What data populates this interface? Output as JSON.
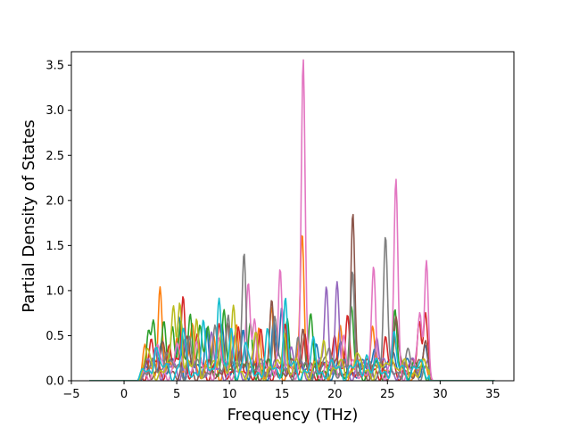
{
  "chart_data": {
    "type": "line",
    "title": "",
    "xlabel": "Frequency (THz)",
    "ylabel": "Partial Density of States",
    "xlim": [
      -5,
      37
    ],
    "ylim": [
      0,
      3.65
    ],
    "xticks": [
      -5,
      0,
      5,
      10,
      15,
      20,
      25,
      30,
      35
    ],
    "yticks": [
      0.0,
      0.5,
      1.0,
      1.5,
      2.0,
      2.5,
      3.0,
      3.5
    ],
    "xtick_labels": [
      "−5",
      "0",
      "5",
      "10",
      "15",
      "20",
      "25",
      "30",
      "35"
    ],
    "ytick_labels": [
      "0.0",
      "0.5",
      "1.0",
      "1.5",
      "2.0",
      "2.5",
      "3.0",
      "3.5"
    ],
    "grid": false,
    "legend": "none",
    "series": [
      {
        "color": "#1f77b4",
        "peaks": [
          [
            3.5,
            0.35
          ],
          [
            5.2,
            0.62
          ],
          [
            7.8,
            0.5
          ],
          [
            9.3,
            0.6
          ],
          [
            11.3,
            0.45
          ],
          [
            14.2,
            0.55
          ],
          [
            15.0,
            0.62
          ],
          [
            18.2,
            0.25
          ],
          [
            20.5,
            0.3
          ],
          [
            23.8,
            0.35
          ],
          [
            25.6,
            0.3
          ],
          [
            28.5,
            0.2
          ]
        ]
      },
      {
        "color": "#ff7f0e",
        "peaks": [
          [
            2.0,
            0.2
          ],
          [
            3.4,
            0.91
          ],
          [
            5.0,
            0.45
          ],
          [
            6.5,
            0.55
          ],
          [
            8.5,
            0.35
          ],
          [
            10.7,
            0.55
          ],
          [
            12.8,
            0.5
          ],
          [
            14.0,
            0.6
          ],
          [
            16.9,
            1.62
          ],
          [
            20.5,
            0.45
          ],
          [
            23.6,
            0.55
          ],
          [
            25.6,
            0.4
          ]
        ]
      },
      {
        "color": "#2ca02c",
        "peaks": [
          [
            2.3,
            0.5
          ],
          [
            2.8,
            0.6
          ],
          [
            3.8,
            0.55
          ],
          [
            4.6,
            0.6
          ],
          [
            5.4,
            0.5
          ],
          [
            6.3,
            0.72
          ],
          [
            7.2,
            0.5
          ],
          [
            8.0,
            0.5
          ],
          [
            9.5,
            0.55
          ],
          [
            12.0,
            0.45
          ],
          [
            15.5,
            0.45
          ],
          [
            17.7,
            0.58
          ],
          [
            21.6,
            0.6
          ],
          [
            25.7,
            0.55
          ]
        ]
      },
      {
        "color": "#d62728",
        "peaks": [
          [
            2.6,
            0.3
          ],
          [
            4.3,
            0.3
          ],
          [
            5.6,
            0.86
          ],
          [
            7.0,
            0.35
          ],
          [
            9.0,
            0.45
          ],
          [
            10.8,
            0.4
          ],
          [
            13.0,
            0.4
          ],
          [
            15.3,
            0.4
          ],
          [
            17.2,
            0.3
          ],
          [
            20.0,
            0.5
          ],
          [
            21.2,
            0.5
          ],
          [
            24.8,
            0.3
          ],
          [
            28.0,
            0.6
          ],
          [
            28.6,
            0.72
          ]
        ]
      },
      {
        "color": "#9467bd",
        "peaks": [
          [
            3.0,
            0.25
          ],
          [
            5.8,
            0.35
          ],
          [
            8.3,
            0.3
          ],
          [
            10.5,
            0.35
          ],
          [
            12.5,
            0.3
          ],
          [
            15.8,
            0.3
          ],
          [
            19.2,
            0.97
          ],
          [
            20.2,
            0.92
          ],
          [
            24.0,
            0.4
          ],
          [
            27.5,
            0.2
          ]
        ]
      },
      {
        "color": "#8c564b",
        "peaks": [
          [
            3.6,
            0.25
          ],
          [
            6.0,
            0.35
          ],
          [
            9.8,
            0.4
          ],
          [
            11.0,
            0.3
          ],
          [
            14.0,
            0.68
          ],
          [
            17.0,
            0.55
          ],
          [
            21.7,
            1.71
          ],
          [
            25.8,
            0.6
          ],
          [
            28.6,
            0.3
          ]
        ]
      },
      {
        "color": "#e377c2",
        "peaks": [
          [
            3.2,
            0.25
          ],
          [
            5.0,
            0.3
          ],
          [
            6.8,
            0.35
          ],
          [
            9.0,
            0.3
          ],
          [
            11.8,
            0.98
          ],
          [
            12.4,
            0.6
          ],
          [
            14.8,
            1.12
          ],
          [
            17.0,
            3.5
          ],
          [
            20.8,
            0.4
          ],
          [
            23.7,
            1.07
          ],
          [
            25.8,
            2.08
          ],
          [
            28.1,
            0.65
          ],
          [
            28.7,
            1.24
          ]
        ]
      },
      {
        "color": "#7f7f7f",
        "peaks": [
          [
            4.0,
            0.3
          ],
          [
            6.2,
            0.35
          ],
          [
            8.6,
            0.4
          ],
          [
            9.9,
            0.72
          ],
          [
            11.4,
            1.27
          ],
          [
            14.3,
            0.67
          ],
          [
            16.5,
            0.3
          ],
          [
            19.5,
            0.3
          ],
          [
            21.7,
            1.1
          ],
          [
            24.8,
            1.45
          ],
          [
            27.0,
            0.15
          ]
        ]
      },
      {
        "color": "#bcbd22",
        "peaks": [
          [
            2.2,
            0.2
          ],
          [
            4.7,
            0.75
          ],
          [
            5.3,
            0.8
          ],
          [
            6.9,
            0.55
          ],
          [
            9.2,
            0.5
          ],
          [
            10.4,
            0.6
          ],
          [
            12.5,
            0.4
          ],
          [
            15.2,
            0.5
          ],
          [
            19.0,
            0.3
          ],
          [
            22.0,
            0.2
          ],
          [
            25.4,
            0.25
          ]
        ]
      },
      {
        "color": "#17becf",
        "peaks": [
          [
            3.0,
            0.3
          ],
          [
            5.6,
            0.4
          ],
          [
            7.5,
            0.45
          ],
          [
            9.0,
            0.88
          ],
          [
            10.2,
            0.4
          ],
          [
            11.5,
            0.3
          ],
          [
            13.6,
            0.35
          ],
          [
            15.3,
            0.76
          ],
          [
            18.0,
            0.25
          ],
          [
            23.0,
            0.2
          ],
          [
            25.6,
            0.35
          ]
        ]
      }
    ]
  }
}
